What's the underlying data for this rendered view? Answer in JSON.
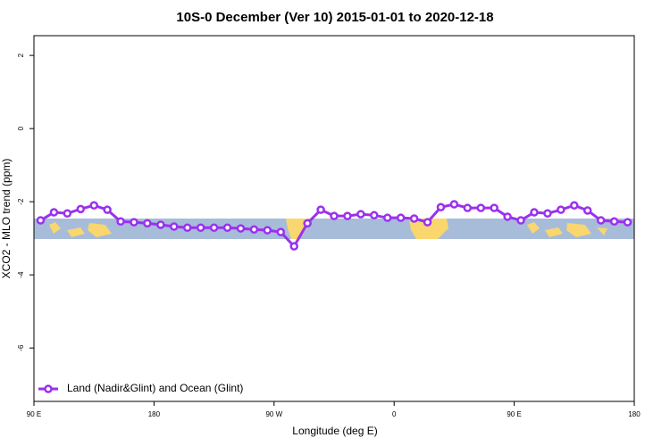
{
  "chart_data": {
    "type": "line",
    "title": "10S-0 December (Ver 10)   2015-01-01 to 2020-12-18",
    "x_label": "Longitude (deg E)",
    "y_label": "XCO2 - MLO trend (ppm)",
    "xlim": [
      90,
      540
    ],
    "ylim": [
      -7.46,
      2.54
    ],
    "xticks": [
      {
        "value": 90,
        "label": "90 E"
      },
      {
        "value": 180,
        "label": "180"
      },
      {
        "value": 270,
        "label": "90 W"
      },
      {
        "value": 360,
        "label": "0"
      },
      {
        "value": 450,
        "label": "90 E"
      },
      {
        "value": 540,
        "label": "180"
      }
    ],
    "yticks": [
      2,
      0,
      -2,
      -4,
      -6
    ],
    "legend": "bottom-left",
    "x": [
      95,
      105,
      115,
      125,
      135,
      145,
      155,
      165,
      175,
      185,
      195,
      205,
      215,
      225,
      235,
      245,
      255,
      265,
      275,
      285,
      295,
      305,
      315,
      325,
      335,
      345,
      355,
      365,
      375,
      385,
      395,
      405,
      415,
      425,
      435,
      445,
      455,
      465,
      475,
      485,
      495,
      505,
      515,
      525,
      535
    ],
    "series": [
      {
        "name": "Land (Nadir&Glint) and Ocean (Glint)",
        "color": "#9b30f0",
        "values": [
          -2.51,
          -2.29,
          -2.32,
          -2.2,
          -2.1,
          -2.22,
          -2.54,
          -2.56,
          -2.59,
          -2.63,
          -2.68,
          -2.71,
          -2.71,
          -2.71,
          -2.71,
          -2.73,
          -2.76,
          -2.78,
          -2.83,
          -3.22,
          -2.59,
          -2.22,
          -2.39,
          -2.39,
          -2.34,
          -2.37,
          -2.44,
          -2.44,
          -2.46,
          -2.56,
          -2.15,
          -2.07,
          -2.17,
          -2.17,
          -2.17,
          -2.41,
          -2.51,
          -2.29,
          -2.32,
          -2.22,
          -2.1,
          -2.24,
          -2.51,
          -2.54,
          -2.56
        ]
      }
    ]
  }
}
